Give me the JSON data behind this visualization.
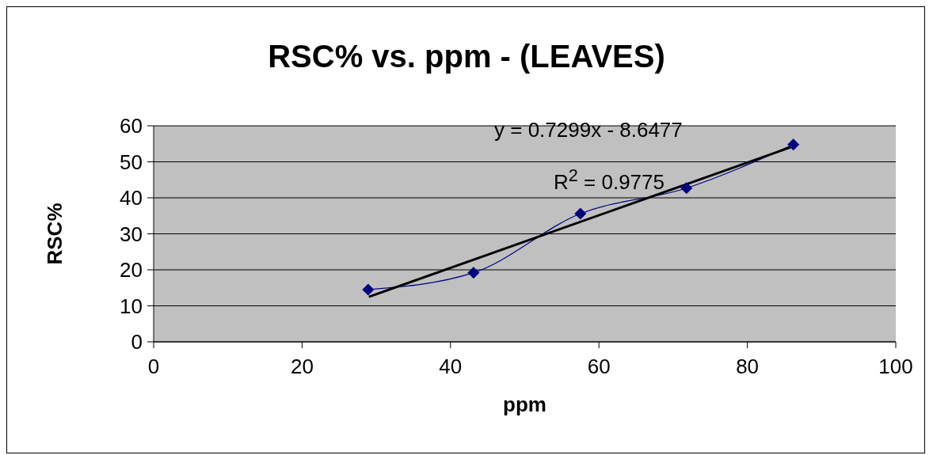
{
  "chart_data": {
    "type": "line",
    "title": "RSC% vs. ppm - (LEAVES)",
    "xlabel": "ppm",
    "ylabel": "RSC%",
    "series": [
      {
        "color": "#000080",
        "marker": "diamond",
        "x": [
          28.9,
          43.1,
          57.5,
          71.8,
          86.2
        ],
        "values": [
          14.5,
          19.2,
          35.6,
          42.7,
          54.8
        ]
      },
      {
        "color": "#000000",
        "marker": "none",
        "x": [
          29,
          86.2
        ],
        "values": [
          12.5,
          54.3
        ]
      }
    ],
    "annotations": [
      "y = 0.7299x - 8.6477",
      "R$^{2}$ = 0.9775"
    ],
    "xlim": [
      0,
      100
    ],
    "xticks": [
      0,
      20,
      40,
      60,
      80,
      100
    ],
    "ylim": [
      0,
      60
    ],
    "yticks": [
      0,
      10,
      20,
      30,
      40,
      50,
      60
    ],
    "grid": "y"
  }
}
